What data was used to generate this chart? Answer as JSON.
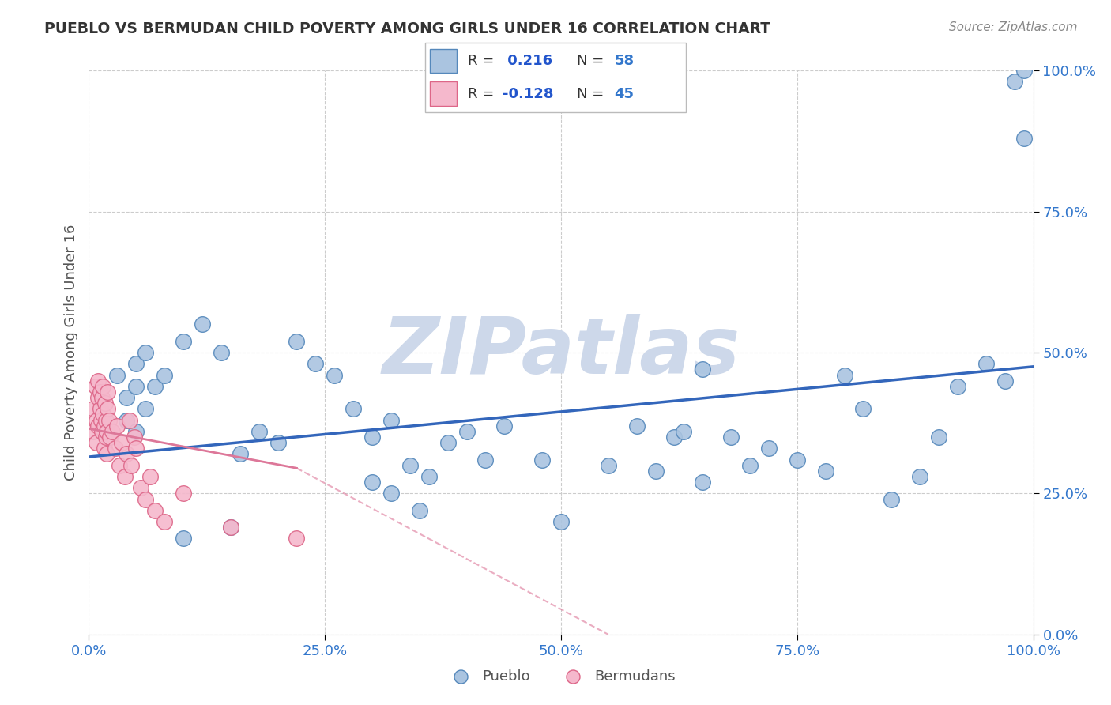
{
  "title": "PUEBLO VS BERMUDAN CHILD POVERTY AMONG GIRLS UNDER 16 CORRELATION CHART",
  "source": "Source: ZipAtlas.com",
  "ylabel": "Child Poverty Among Girls Under 16",
  "xlim": [
    0.0,
    1.0
  ],
  "ylim": [
    0.0,
    1.0
  ],
  "xticks": [
    0.0,
    0.25,
    0.5,
    0.75,
    1.0
  ],
  "yticks": [
    0.0,
    0.25,
    0.5,
    0.75,
    1.0
  ],
  "xtick_labels": [
    "0.0%",
    "25.0%",
    "50.0%",
    "75.0%",
    "100.0%"
  ],
  "ytick_labels": [
    "0.0%",
    "25.0%",
    "50.0%",
    "75.0%",
    "100.0%"
  ],
  "pueblo_color": "#aac4e0",
  "pueblo_edge_color": "#5588bb",
  "bermuda_color": "#f5b8cc",
  "bermuda_edge_color": "#dd6688",
  "trend_blue_color": "#3366bb",
  "trend_pink_color": "#dd7799",
  "R_pueblo": 0.216,
  "N_pueblo": 58,
  "R_bermuda": -0.128,
  "N_bermuda": 45,
  "pueblo_x": [
    0.03,
    0.04,
    0.04,
    0.05,
    0.05,
    0.05,
    0.06,
    0.06,
    0.07,
    0.08,
    0.1,
    0.12,
    0.14,
    0.16,
    0.18,
    0.2,
    0.22,
    0.24,
    0.26,
    0.28,
    0.3,
    0.32,
    0.34,
    0.36,
    0.38,
    0.4,
    0.42,
    0.44,
    0.48,
    0.5,
    0.55,
    0.58,
    0.6,
    0.62,
    0.63,
    0.65,
    0.65,
    0.68,
    0.7,
    0.72,
    0.75,
    0.78,
    0.8,
    0.82,
    0.85,
    0.88,
    0.9,
    0.92,
    0.95,
    0.97,
    0.98,
    0.99,
    0.99,
    0.3,
    0.32,
    0.35,
    0.1,
    0.15
  ],
  "pueblo_y": [
    0.46,
    0.42,
    0.38,
    0.48,
    0.44,
    0.36,
    0.5,
    0.4,
    0.44,
    0.46,
    0.52,
    0.55,
    0.5,
    0.32,
    0.36,
    0.34,
    0.52,
    0.48,
    0.46,
    0.4,
    0.35,
    0.38,
    0.3,
    0.28,
    0.34,
    0.36,
    0.31,
    0.37,
    0.31,
    0.2,
    0.3,
    0.37,
    0.29,
    0.35,
    0.36,
    0.47,
    0.27,
    0.35,
    0.3,
    0.33,
    0.31,
    0.29,
    0.46,
    0.4,
    0.24,
    0.28,
    0.35,
    0.44,
    0.48,
    0.45,
    0.98,
    0.88,
    1.0,
    0.27,
    0.25,
    0.22,
    0.17,
    0.19
  ],
  "bermuda_x": [
    0.005,
    0.005,
    0.007,
    0.008,
    0.008,
    0.01,
    0.01,
    0.01,
    0.012,
    0.012,
    0.013,
    0.014,
    0.014,
    0.015,
    0.015,
    0.016,
    0.016,
    0.017,
    0.018,
    0.018,
    0.019,
    0.019,
    0.02,
    0.02,
    0.021,
    0.022,
    0.025,
    0.028,
    0.03,
    0.032,
    0.035,
    0.038,
    0.04,
    0.043,
    0.045,
    0.048,
    0.05,
    0.055,
    0.06,
    0.065,
    0.07,
    0.08,
    0.1,
    0.15,
    0.22
  ],
  "bermuda_y": [
    0.4,
    0.36,
    0.44,
    0.38,
    0.34,
    0.45,
    0.42,
    0.37,
    0.4,
    0.43,
    0.38,
    0.42,
    0.36,
    0.44,
    0.39,
    0.37,
    0.33,
    0.41,
    0.35,
    0.38,
    0.36,
    0.32,
    0.4,
    0.43,
    0.38,
    0.35,
    0.36,
    0.33,
    0.37,
    0.3,
    0.34,
    0.28,
    0.32,
    0.38,
    0.3,
    0.35,
    0.33,
    0.26,
    0.24,
    0.28,
    0.22,
    0.2,
    0.25,
    0.19,
    0.17
  ],
  "blue_trend_x0": 0.0,
  "blue_trend_y0": 0.315,
  "blue_trend_x1": 1.0,
  "blue_trend_y1": 0.475,
  "pink_trend_x0": 0.0,
  "pink_trend_y0": 0.365,
  "pink_trend_x1": 0.22,
  "pink_trend_x1_dashed": 0.55,
  "pink_trend_y1": 0.295,
  "pink_trend_y1_dashed": 0.0,
  "watermark": "ZIPatlas",
  "watermark_color": "#cdd8ea",
  "background_color": "#ffffff",
  "grid_color": "#cccccc",
  "title_color": "#333333",
  "axis_label_color": "#555555",
  "tick_color": "#3377cc",
  "legend_R_color": "#2255cc",
  "legend_N_color": "#3377cc",
  "source_color": "#888888"
}
